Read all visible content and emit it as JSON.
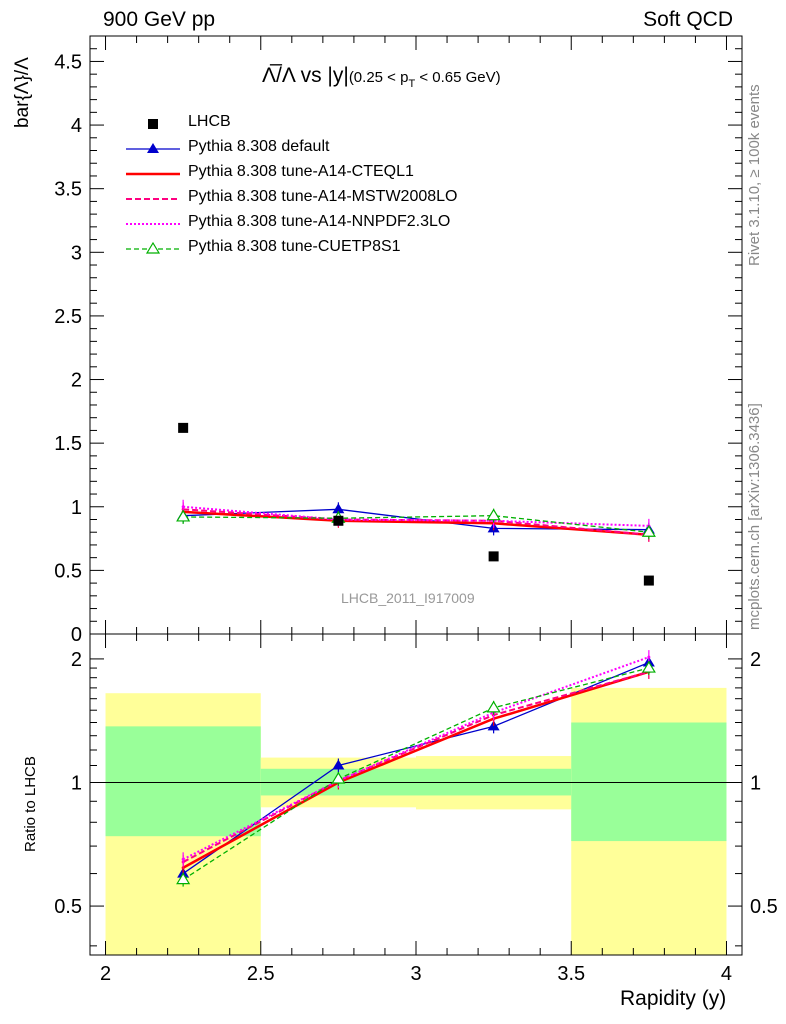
{
  "header": {
    "left": "900 GeV pp",
    "right": "Soft QCD"
  },
  "side_labels": {
    "rivet": "Rivet 3.1.10, ≥ 100k events",
    "source": "mcplots.cern.ch [arXiv:1306.3436]"
  },
  "plot_title": {
    "main": "Λ̅/Λ vs |y|",
    "sub": "(0.25 < p",
    "sub_T": "T",
    "sub_end": " < 0.65 GeV)"
  },
  "watermark": "LHCB_2011_I917009",
  "colors": {
    "data": "#000000",
    "default": "#0000cc",
    "cteql1": "#ff0000",
    "mstw": "#ff0080",
    "nnpdf": "#ff00ff",
    "cuetp": "#00b000",
    "band_outer": "#ffff99",
    "band_inner": "#99ff99"
  },
  "chart_data": [
    {
      "type": "scatter",
      "panel": "main",
      "ylabel": "bar{Λ}/Λ",
      "xlim": [
        1.95,
        4.05
      ],
      "ylim": [
        0,
        4.7
      ],
      "y_ticks": [
        "0",
        "0.5",
        "1",
        "1.5",
        "2",
        "2.5",
        "3",
        "3.5",
        "4",
        "4.5"
      ],
      "x": [
        2.25,
        2.75,
        3.25,
        3.75
      ],
      "series": [
        {
          "name": "LHCB",
          "key": "data",
          "values": [
            1.62,
            0.89,
            0.61,
            0.42
          ],
          "style": "square"
        },
        {
          "name": "Pythia 8.308 default",
          "key": "default",
          "values": [
            0.93,
            0.98,
            0.83,
            0.82
          ],
          "style": "solid-triangle"
        },
        {
          "name": "Pythia 8.308 tune-A14-CTEQL1",
          "key": "cteql1",
          "values": [
            0.96,
            0.89,
            0.87,
            0.78
          ],
          "style": "thick-solid"
        },
        {
          "name": "Pythia 8.308 tune-A14-MSTW2008LO",
          "key": "mstw",
          "values": [
            0.98,
            0.9,
            0.89,
            0.78
          ],
          "style": "dashed"
        },
        {
          "name": "Pythia 8.308 tune-A14-NNPDF2.3LO",
          "key": "nnpdf",
          "values": [
            1.0,
            0.9,
            0.89,
            0.85
          ],
          "style": "dotted"
        },
        {
          "name": "Pythia 8.308 tune-CUETP8S1",
          "key": "cuetp",
          "values": [
            0.92,
            0.91,
            0.93,
            0.8
          ],
          "style": "dashed-open-triangle"
        }
      ]
    },
    {
      "type": "line",
      "panel": "ratio",
      "ylabel": "Ratio to LHCB",
      "xlabel": "Rapidity (y)",
      "xlim": [
        1.95,
        4.05
      ],
      "ylim": [
        0.38,
        2.3
      ],
      "log_y": true,
      "x_ticks": [
        "2",
        "2.5",
        "3",
        "3.5",
        "4"
      ],
      "y_ticks": [
        "0.5",
        "1",
        "2"
      ],
      "x": [
        2.25,
        2.75,
        3.25,
        3.75
      ],
      "bins": [
        [
          2.0,
          2.5
        ],
        [
          2.5,
          3.0
        ],
        [
          3.0,
          3.5
        ],
        [
          3.5,
          4.0
        ]
      ],
      "band_inner": [
        [
          0.74,
          1.37
        ],
        [
          0.93,
          1.08
        ],
        [
          0.93,
          1.08
        ],
        [
          0.72,
          1.4
        ]
      ],
      "band_outer": [
        [
          0.38,
          1.65
        ],
        [
          0.87,
          1.15
        ],
        [
          0.86,
          1.16
        ],
        [
          0.38,
          1.7
        ]
      ],
      "series": [
        {
          "name": "Pythia 8.308 default",
          "key": "default",
          "values": [
            0.6,
            1.1,
            1.37,
            1.96
          ]
        },
        {
          "name": "Pythia 8.308 tune-A14-CTEQL1",
          "key": "cteql1",
          "values": [
            0.62,
            1.0,
            1.43,
            1.86
          ]
        },
        {
          "name": "Pythia 8.308 tune-A14-MSTW2008LO",
          "key": "mstw",
          "values": [
            0.64,
            1.01,
            1.46,
            1.86
          ]
        },
        {
          "name": "Pythia 8.308 tune-A14-NNPDF2.3LO",
          "key": "nnpdf",
          "values": [
            0.65,
            1.01,
            1.48,
            2.02
          ]
        },
        {
          "name": "Pythia 8.308 tune-CUETP8S1",
          "key": "cuetp",
          "values": [
            0.58,
            1.02,
            1.52,
            1.9
          ]
        }
      ]
    }
  ]
}
